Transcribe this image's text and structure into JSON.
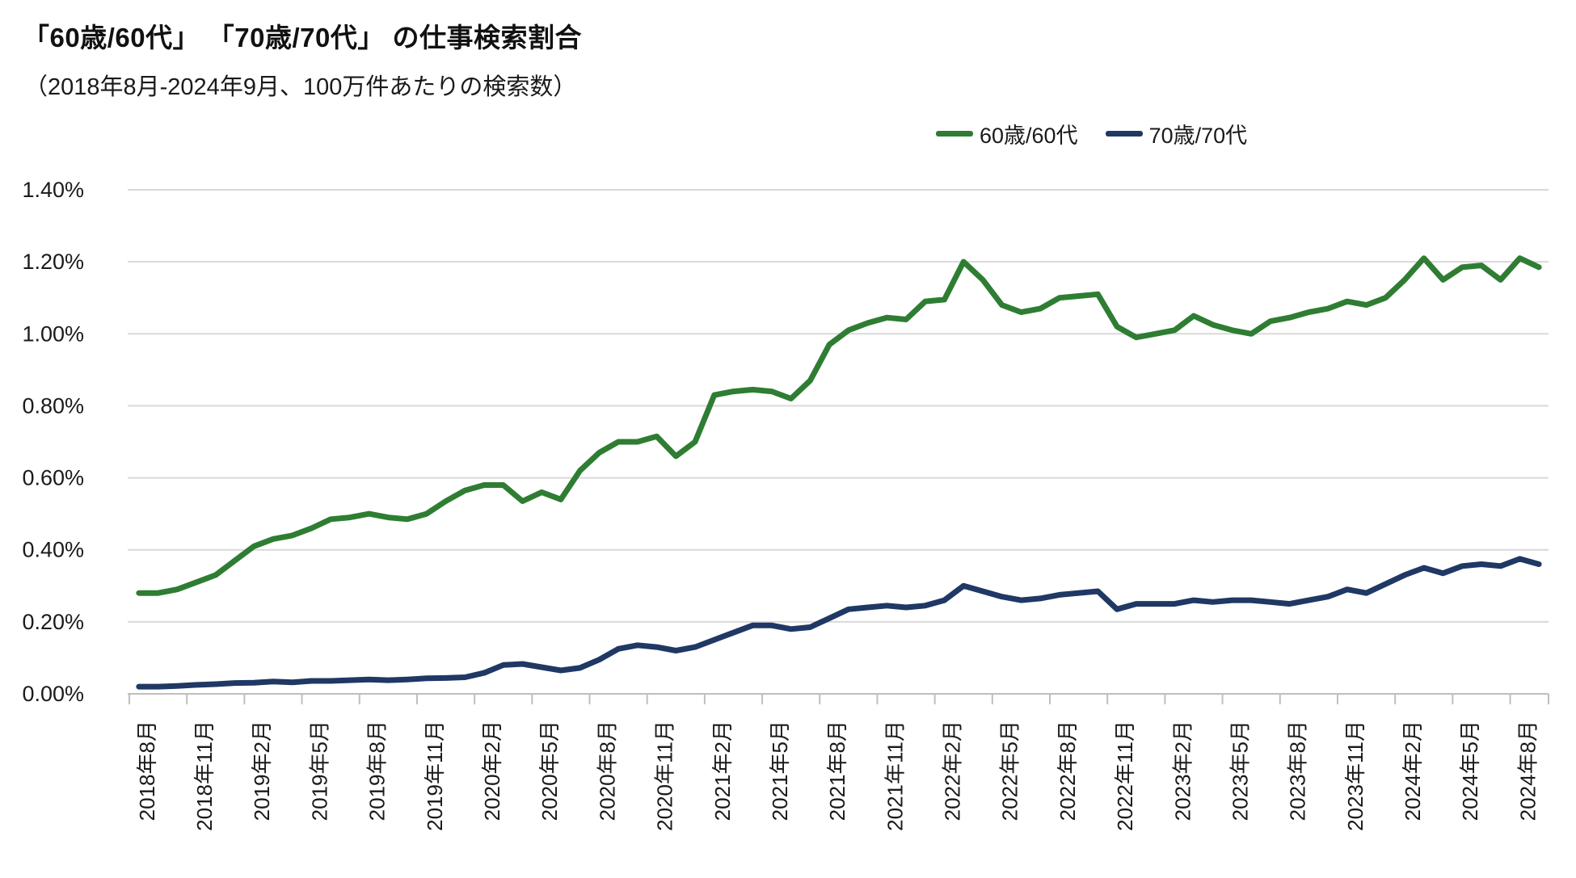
{
  "header": {
    "title": "「60歳/60代」 「70歳/70代」 の仕事検索割合",
    "subtitle": "（2018年8月-2024年9月、100万件あたりの検索数）"
  },
  "legend": [
    {
      "label": "60歳/60代",
      "color": "#2e7d33"
    },
    {
      "label": "70歳/70代",
      "color": "#1f3864"
    }
  ],
  "chart_data": {
    "type": "line",
    "title": "「60歳/60代」 「70歳/70代」 の仕事検索割合",
    "subtitle": "（2018年8月-2024年9月、100万件あたりの検索数）",
    "unit": "percent of searches per million",
    "x_start": "2018-08",
    "x_end": "2024-09",
    "x_interval": "monthly",
    "x_tick_labels": [
      "2018年8月",
      "2018年11月",
      "2019年2月",
      "2019年5月",
      "2019年8月",
      "2019年11月",
      "2020年2月",
      "2020年5月",
      "2020年8月",
      "2020年11月",
      "2021年2月",
      "2021年5月",
      "2021年8月",
      "2021年11月",
      "2022年2月",
      "2022年5月",
      "2022年8月",
      "2022年11月",
      "2023年2月",
      "2023年5月",
      "2023年8月",
      "2023年11月",
      "2024年2月",
      "2024年5月",
      "2024年8月"
    ],
    "y_tick_labels": [
      "1.40%",
      "1.20%",
      "1.00%",
      "0.80%",
      "0.60%",
      "0.40%",
      "0.20%",
      "0.00%"
    ],
    "ylim": [
      0,
      1.4
    ],
    "grid": true,
    "legend_position": "top-right",
    "series": [
      {
        "name": "60歳/60代",
        "color": "#2e7d33",
        "values": [
          0.28,
          0.28,
          0.29,
          0.31,
          0.33,
          0.37,
          0.41,
          0.43,
          0.44,
          0.46,
          0.485,
          0.49,
          0.5,
          0.49,
          0.485,
          0.5,
          0.535,
          0.565,
          0.58,
          0.58,
          0.535,
          0.56,
          0.54,
          0.62,
          0.67,
          0.7,
          0.7,
          0.715,
          0.66,
          0.7,
          0.83,
          0.84,
          0.845,
          0.84,
          0.82,
          0.87,
          0.97,
          1.01,
          1.03,
          1.045,
          1.04,
          1.09,
          1.095,
          1.2,
          1.15,
          1.08,
          1.06,
          1.07,
          1.1,
          1.105,
          1.11,
          1.02,
          0.99,
          1.0,
          1.01,
          1.05,
          1.025,
          1.01,
          1.0,
          1.035,
          1.045,
          1.06,
          1.07,
          1.09,
          1.08,
          1.1,
          1.15,
          1.21,
          1.15,
          1.185,
          1.19,
          1.15,
          1.21,
          1.185
        ]
      },
      {
        "name": "70歳/70代",
        "color": "#1f3864",
        "values": [
          0.02,
          0.02,
          0.022,
          0.025,
          0.027,
          0.03,
          0.031,
          0.034,
          0.032,
          0.036,
          0.036,
          0.038,
          0.04,
          0.038,
          0.04,
          0.043,
          0.044,
          0.046,
          0.058,
          0.08,
          0.083,
          0.074,
          0.065,
          0.072,
          0.095,
          0.125,
          0.135,
          0.13,
          0.12,
          0.13,
          0.15,
          0.17,
          0.19,
          0.19,
          0.18,
          0.185,
          0.21,
          0.235,
          0.24,
          0.245,
          0.24,
          0.245,
          0.26,
          0.3,
          0.285,
          0.27,
          0.26,
          0.265,
          0.275,
          0.28,
          0.285,
          0.235,
          0.25,
          0.25,
          0.25,
          0.26,
          0.255,
          0.26,
          0.26,
          0.255,
          0.25,
          0.26,
          0.27,
          0.29,
          0.28,
          0.305,
          0.33,
          0.35,
          0.335,
          0.355,
          0.36,
          0.355,
          0.375,
          0.36
        ]
      }
    ]
  },
  "colors": {
    "gridline": "#d9d9d9",
    "axis": "#bfbfbf",
    "text": "#1a1a1a"
  }
}
